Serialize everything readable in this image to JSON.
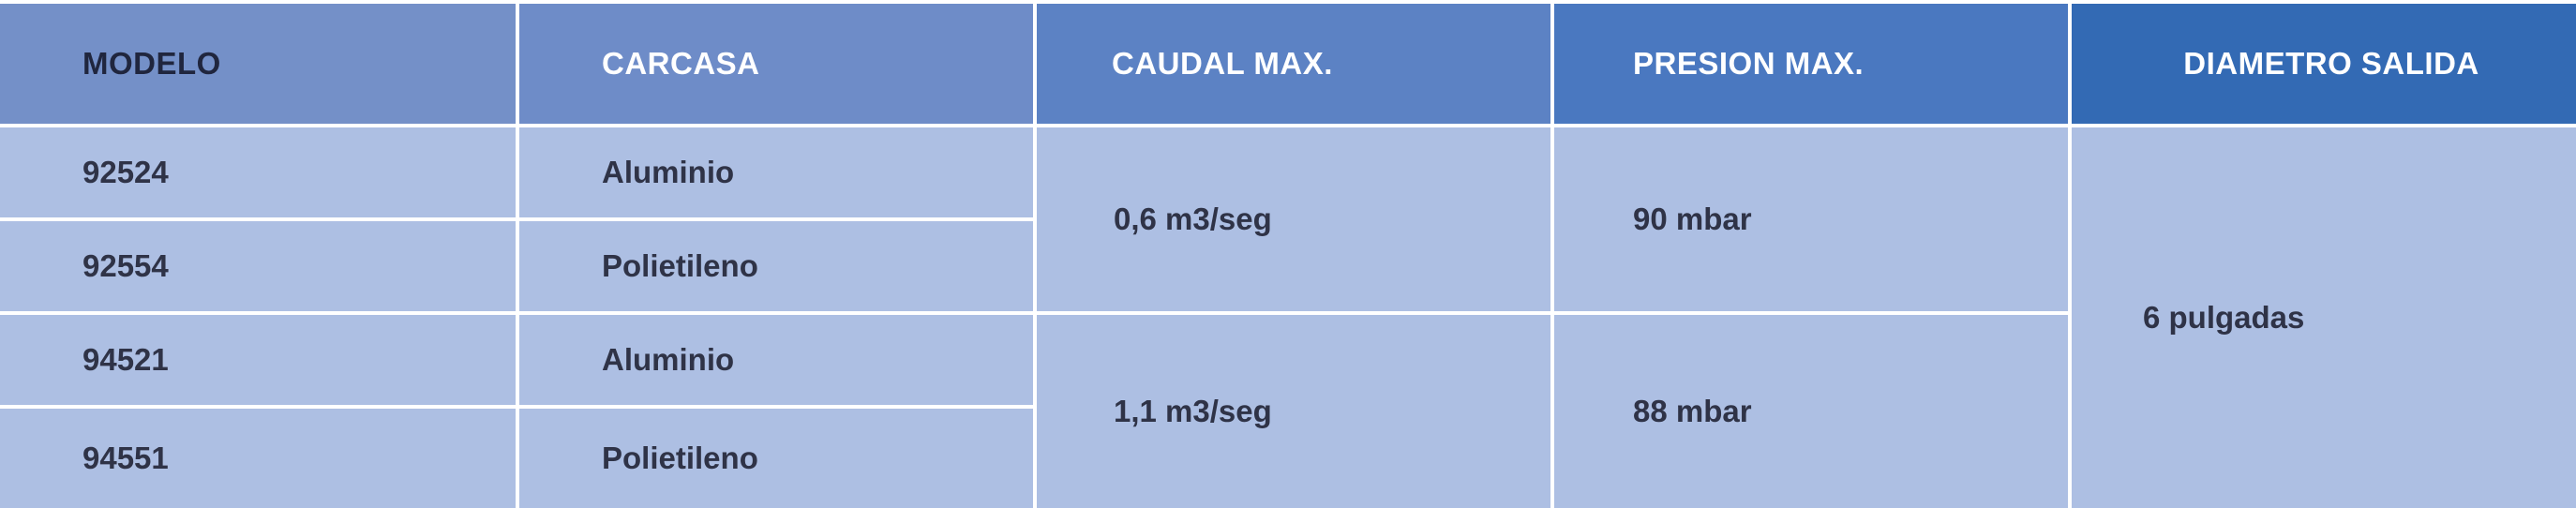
{
  "table": {
    "headers": [
      "MODELO",
      "CARCASA",
      "CAUDAL MAX.",
      "PRESION MAX.",
      "DIAMETRO SALIDA"
    ],
    "rows": [
      {
        "modelo": "92524",
        "carcasa": "Aluminio"
      },
      {
        "modelo": "92554",
        "carcasa": "Polietileno"
      },
      {
        "modelo": "94521",
        "carcasa": "Aluminio"
      },
      {
        "modelo": "94551",
        "carcasa": "Polietileno"
      }
    ],
    "caudal": [
      "0,6 m3/seg",
      "1,1 m3/seg"
    ],
    "presion": [
      "90 mbar",
      "88 mbar"
    ],
    "diametro": "6 pulgadas"
  },
  "colors": {
    "header_1": "#7490c8",
    "header_5": "#336ab4",
    "cell_bg": "#adbfe3",
    "text_dark": "#2f3347"
  }
}
